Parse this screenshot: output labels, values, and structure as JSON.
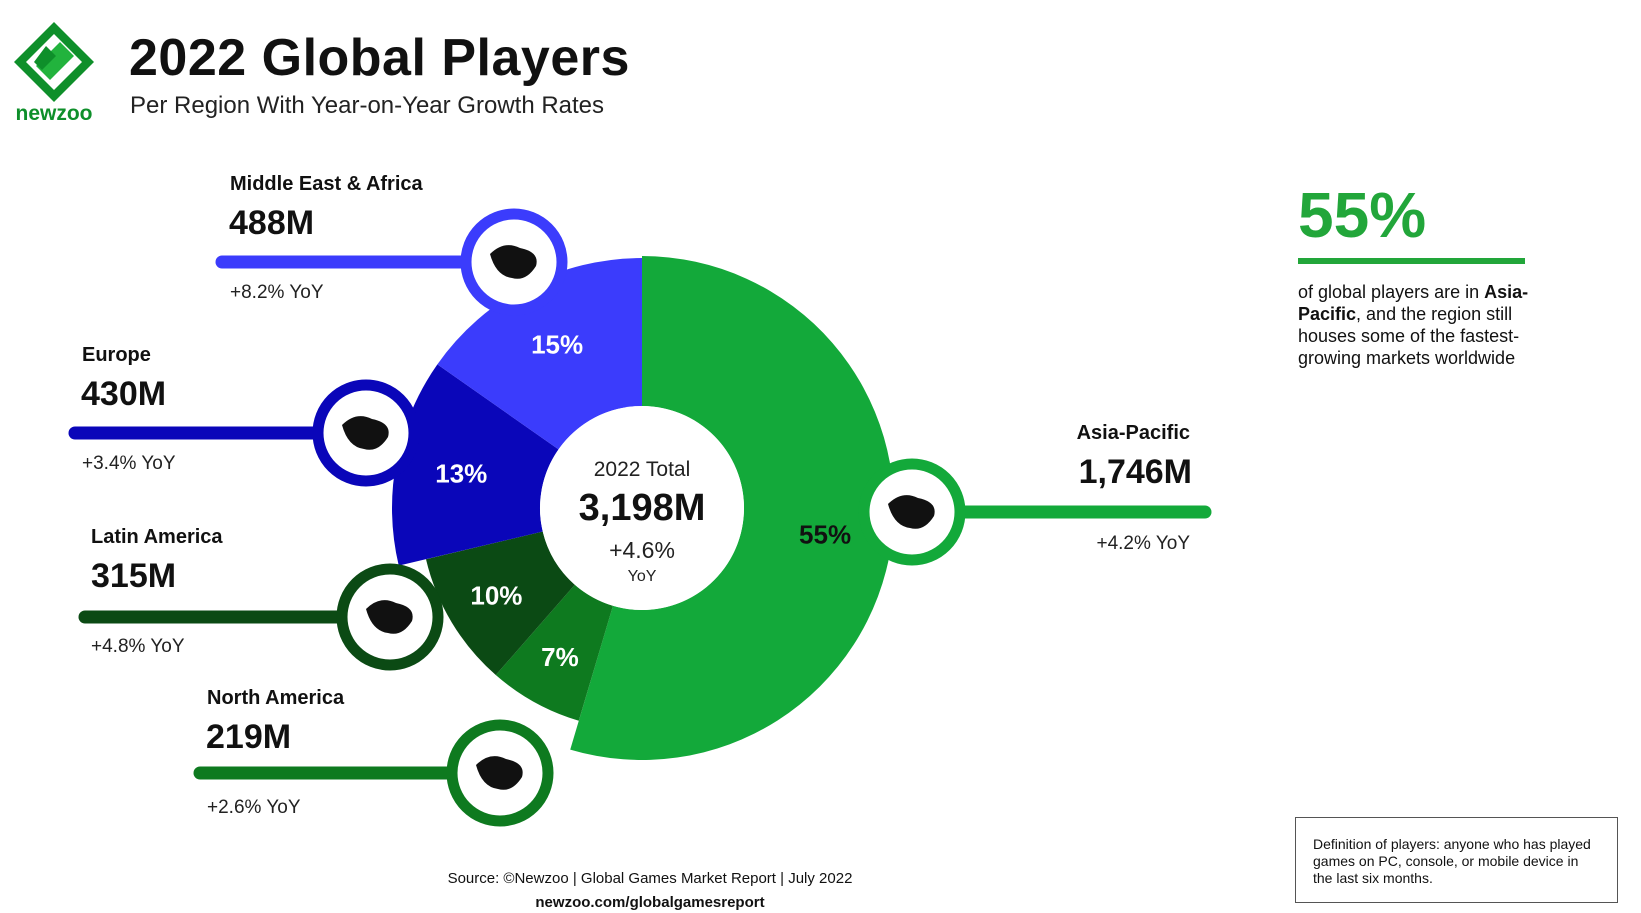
{
  "header": {
    "logo_text": "newzoo",
    "title": "2022 Global Players",
    "subtitle": "Per Region With Year-on-Year Growth Rates"
  },
  "center": {
    "label": "2022 Total",
    "value": "3,198M",
    "growth": "+4.6%",
    "growth_unit": "YoY"
  },
  "callout": {
    "pct": "55%",
    "text_before": "of global players are in ",
    "text_bold": "Asia-Pacific",
    "text_after": ", and the region still houses some of the fastest-growing markets worldwide"
  },
  "definition": "Definition of players: anyone who has played games on PC, console, or mobile device in the last six months.",
  "footer": {
    "source": "Source: ©Newzoo | Global Games Market Report | July 2022",
    "url": "newzoo.com/globalgamesreport"
  },
  "chart_data": {
    "type": "pie",
    "center_total": 3198,
    "unit": "M",
    "series": [
      {
        "name": "Asia-Pacific",
        "value": 1746,
        "value_label": "1,746M",
        "pct_label": "55%",
        "yoy": "+4.2% YoY",
        "color": "#13a93a",
        "icon": "asia-pacific-map-icon"
      },
      {
        "name": "North America",
        "value": 219,
        "value_label": "219M",
        "pct_label": "7%",
        "yoy": "+2.6% YoY",
        "color": "#0e7a1f",
        "icon": "north-america-map-icon"
      },
      {
        "name": "Latin America",
        "value": 315,
        "value_label": "315M",
        "pct_label": "10%",
        "yoy": "+4.8% YoY",
        "color": "#0b4a14",
        "icon": "latin-america-map-icon"
      },
      {
        "name": "Europe",
        "value": 430,
        "value_label": "430M",
        "pct_label": "13%",
        "yoy": "+3.4% YoY",
        "color": "#0a06b9",
        "icon": "europe-map-icon"
      },
      {
        "name": "Middle East & Africa",
        "value": 488,
        "value_label": "488M",
        "pct_label": "15%",
        "yoy": "+8.2% YoY",
        "color": "#3b3cfc",
        "icon": "africa-map-icon"
      }
    ]
  }
}
